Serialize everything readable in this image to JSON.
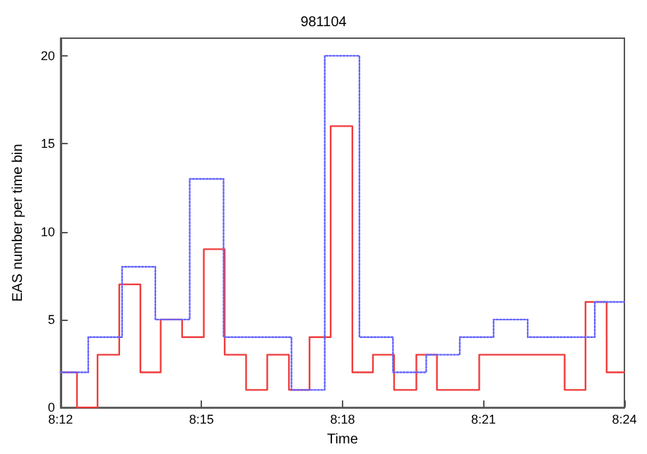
{
  "chart_data": {
    "type": "step",
    "title": "981104",
    "xlabel": "Time",
    "ylabel": "EAS number per time bin",
    "xlim": [
      8.2,
      8.4
    ],
    "xticks": [
      {
        "value": 8.2,
        "label": "8:12"
      },
      {
        "value": 8.25,
        "label": "8:15"
      },
      {
        "value": 8.3,
        "label": "8:18"
      },
      {
        "value": 8.35,
        "label": "8:21"
      },
      {
        "value": 8.4,
        "label": "8:24"
      }
    ],
    "ylim": [
      0,
      21
    ],
    "yticks": [
      0,
      5,
      10,
      15,
      20
    ],
    "grid": false,
    "series": [
      {
        "color": "#f03c3c",
        "line_style": "solid",
        "x": [
          8.2,
          8.2058,
          8.2131,
          8.2208,
          8.2283,
          8.2355,
          8.2431,
          8.2508,
          8.2582,
          8.2658,
          8.2733,
          8.281,
          8.2883,
          8.2958,
          8.3035,
          8.3108,
          8.3183,
          8.3262,
          8.3335,
          8.3485,
          8.3788,
          8.3862,
          8.3937,
          8.4
        ],
        "values": [
          2,
          0,
          3,
          7,
          2,
          5,
          4,
          9,
          3,
          1,
          3,
          1,
          4,
          16,
          2,
          3,
          1,
          3,
          1,
          3,
          1,
          6,
          2,
          2
        ]
      },
      {
        "color": "#6464ff",
        "line_style": "dotted",
        "x": [
          8.2,
          8.2098,
          8.2218,
          8.2336,
          8.2458,
          8.2578,
          8.2819,
          8.2937,
          8.306,
          8.3179,
          8.3297,
          8.3416,
          8.3536,
          8.3657,
          8.3895,
          8.4
        ],
        "values": [
          2,
          4,
          8,
          5,
          13,
          4,
          1,
          20,
          4,
          2,
          3,
          4,
          5,
          4,
          6,
          6
        ]
      }
    ]
  }
}
